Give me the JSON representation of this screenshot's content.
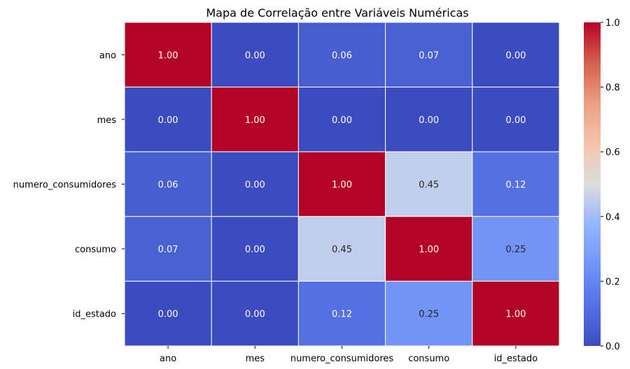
{
  "chart_data": {
    "type": "heatmap",
    "title": "Mapa de Correlação entre Variáveis Numéricas",
    "xlabel": "",
    "ylabel": "",
    "x_categories": [
      "ano",
      "mes",
      "numero_consumidores",
      "consumo",
      "id_estado"
    ],
    "y_categories": [
      "ano",
      "mes",
      "numero_consumidores",
      "consumo",
      "id_estado"
    ],
    "values": [
      [
        1.0,
        0.0,
        0.06,
        0.07,
        0.0
      ],
      [
        0.0,
        1.0,
        0.0,
        0.0,
        0.0
      ],
      [
        0.06,
        0.0,
        1.0,
        0.45,
        0.12
      ],
      [
        0.07,
        0.0,
        0.45,
        1.0,
        0.25
      ],
      [
        0.0,
        0.0,
        0.12,
        0.25,
        1.0
      ]
    ],
    "value_format": "0.00",
    "colormap": "coolwarm",
    "vmin": 0.0,
    "vmax": 1.0,
    "colorbar_ticks": [
      "0.0",
      "0.2",
      "0.4",
      "0.6",
      "0.8",
      "1.0"
    ],
    "grid": false,
    "cell_border_color": "#ffffff",
    "colors": {
      "low": "#3b4cc0",
      "mid": "#dddddd",
      "high": "#b40426"
    }
  }
}
